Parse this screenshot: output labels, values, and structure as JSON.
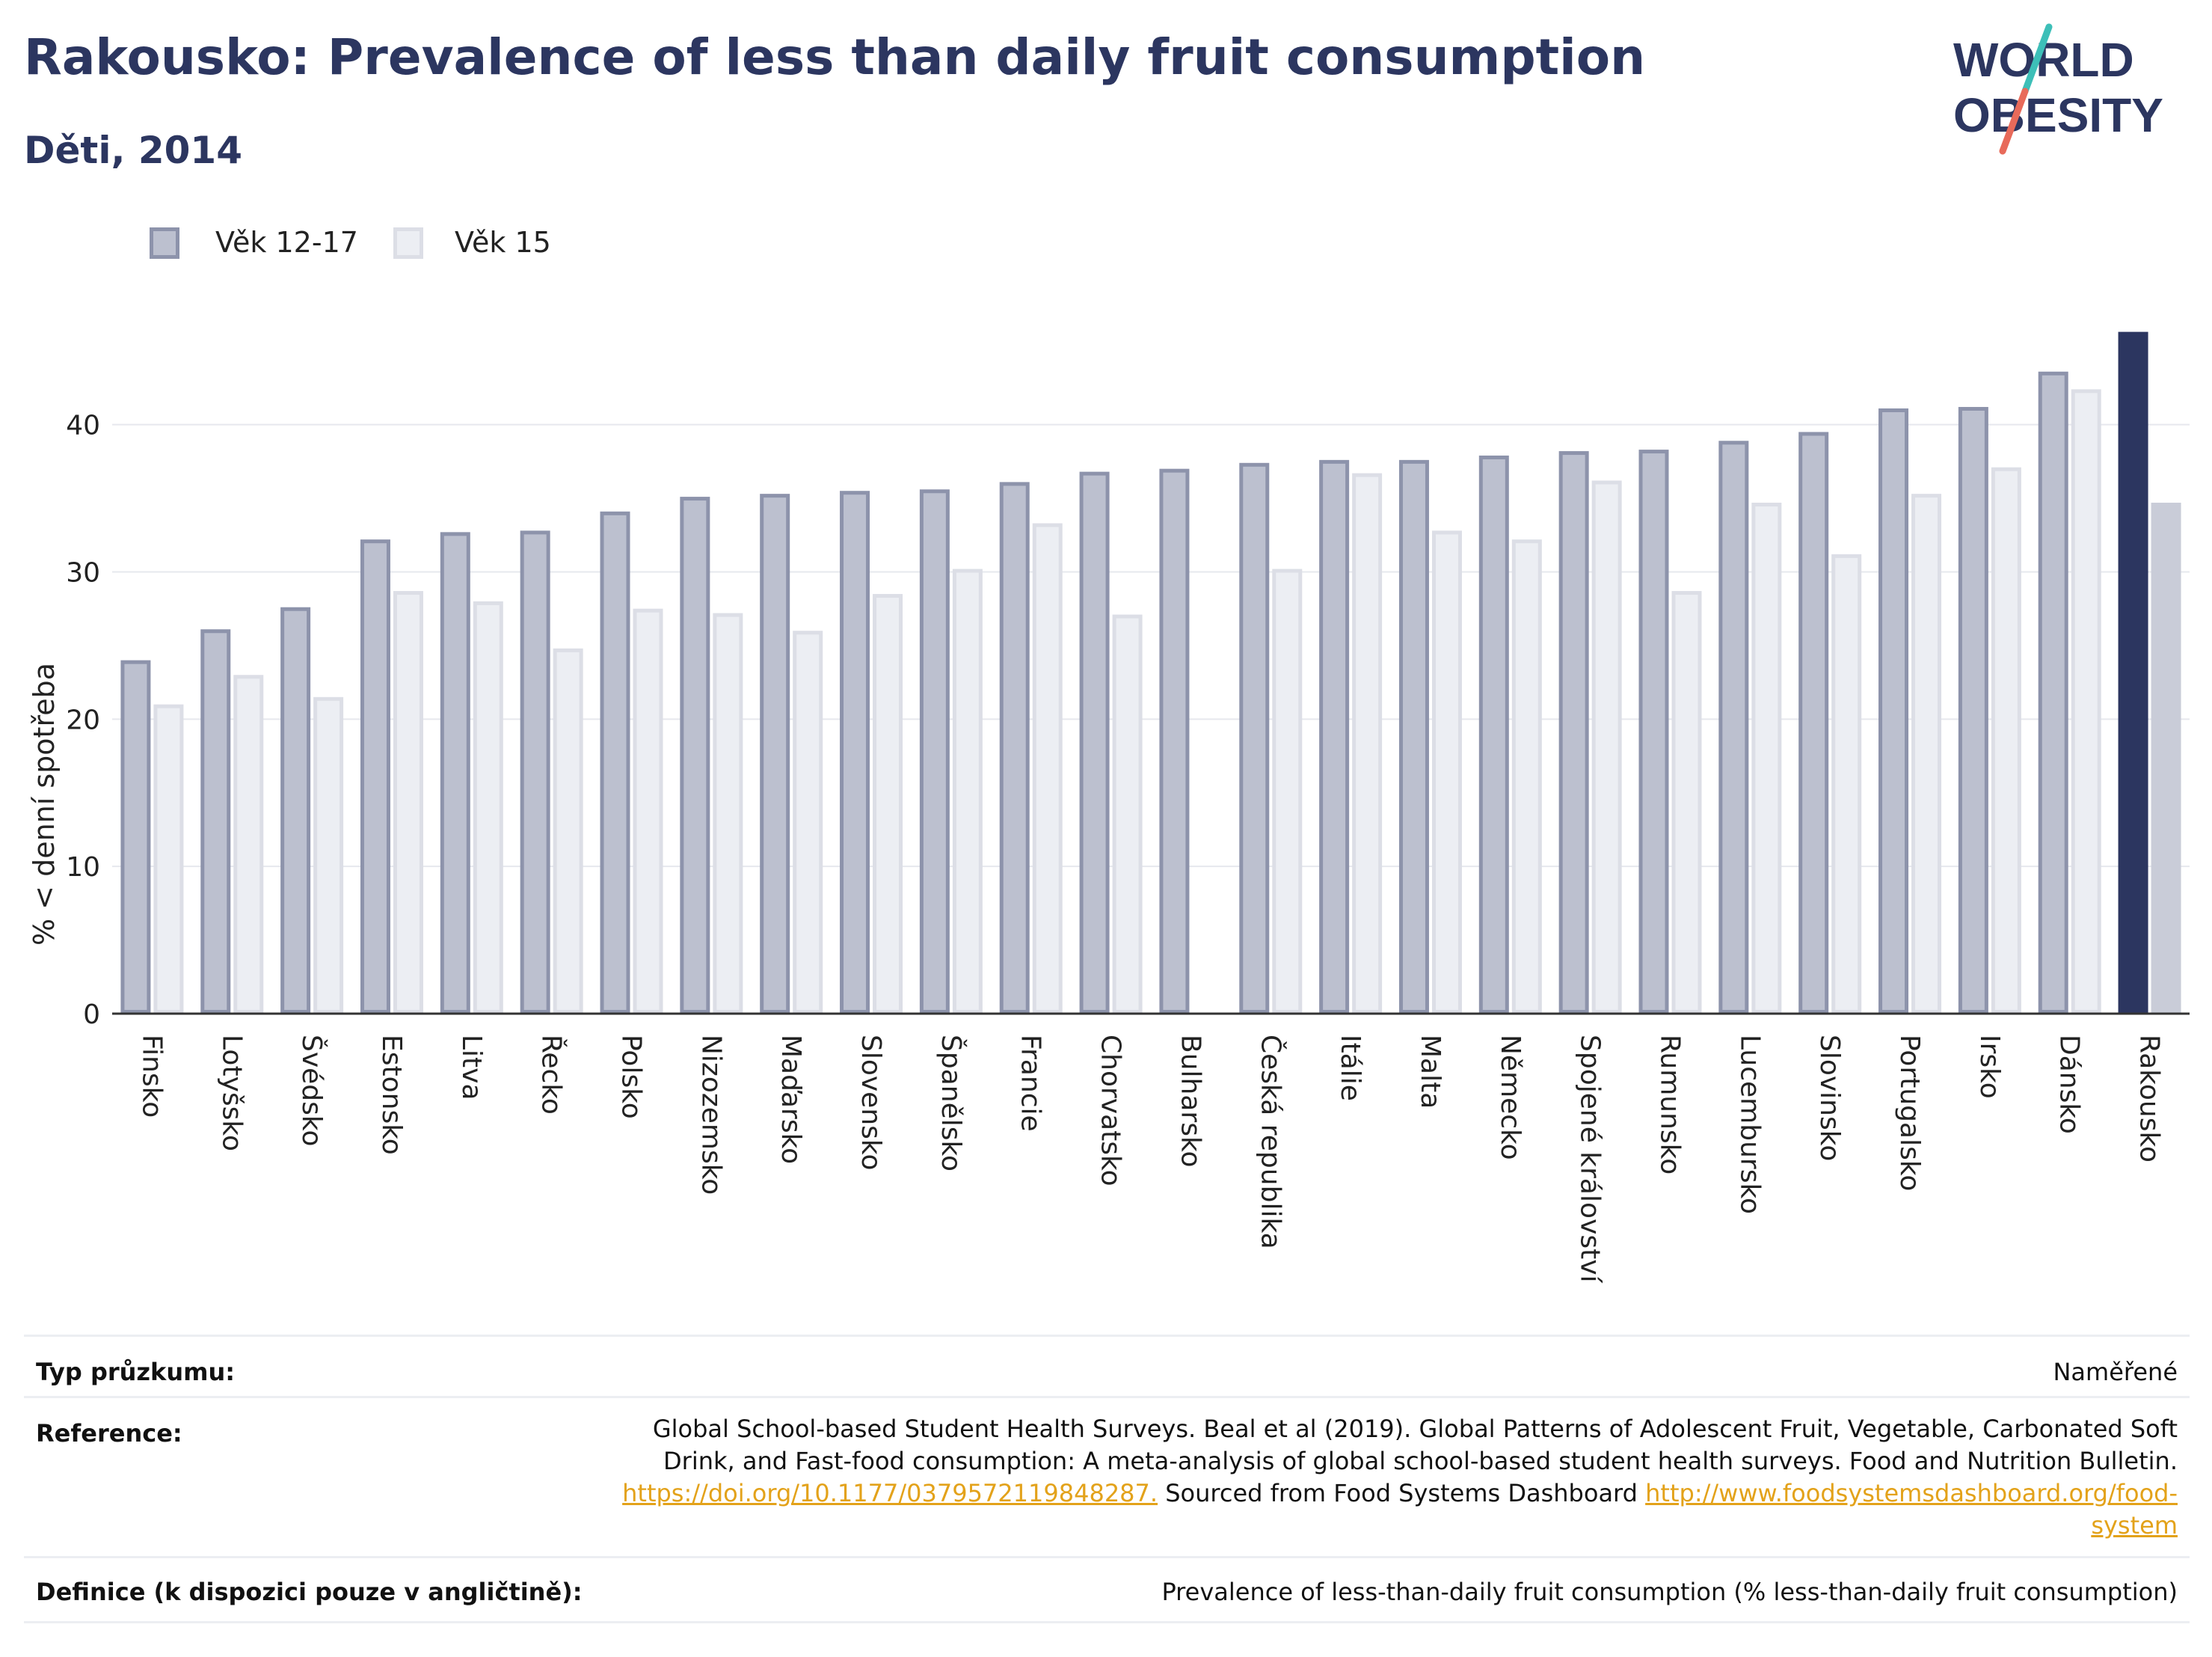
{
  "header": {
    "title": "Rakousko: Prevalence of less than daily fruit consumption",
    "subtitle": "Děti, 2014"
  },
  "logo": {
    "line1": "WORLD",
    "line2": "OBESITY"
  },
  "colors": {
    "series1": "#bcc0cf",
    "series1_border": "#8d93ab",
    "series2": "#eceef3",
    "series2_border": "#dcdee6",
    "highlight1": "#2c3660",
    "highlight2": "#c9ccd8",
    "title": "#2c3660",
    "link": "#e3a21a"
  },
  "chart_data": {
    "type": "bar",
    "ylabel": "% < denní spotřeba",
    "ylim": [
      0,
      47.5
    ],
    "yticks": [
      0,
      10,
      20,
      30,
      40
    ],
    "legend_position": "top-left",
    "grid": true,
    "highlight_category": "Rakousko",
    "categories": [
      "Finsko",
      "Lotyšsko",
      "Švédsko",
      "Estonsko",
      "Litva",
      "Řecko",
      "Polsko",
      "Nizozemsko",
      "Maďarsko",
      "Slovensko",
      "Španělsko",
      "Francie",
      "Chorvatsko",
      "Bulharsko",
      "Česká republika",
      "Itálie",
      "Malta",
      "Německo",
      "Spojené království",
      "Rumunsko",
      "Lucembursko",
      "Slovinsko",
      "Portugalsko",
      "Irsko",
      "Dánsko",
      "Rakousko"
    ],
    "series": [
      {
        "name": "Věk 12-17",
        "values": [
          24.0,
          26.1,
          27.6,
          32.2,
          32.7,
          32.8,
          34.1,
          35.1,
          35.3,
          35.5,
          35.6,
          36.1,
          36.8,
          37.0,
          37.4,
          37.6,
          37.6,
          37.9,
          38.2,
          38.3,
          38.9,
          39.5,
          41.1,
          41.2,
          43.6,
          46.3
        ]
      },
      {
        "name": "Věk 15",
        "values": [
          21.0,
          23.0,
          21.5,
          28.7,
          28.0,
          24.8,
          27.5,
          27.2,
          26.0,
          28.5,
          30.2,
          33.3,
          27.1,
          null,
          30.2,
          36.7,
          32.8,
          32.2,
          36.2,
          28.7,
          34.7,
          31.2,
          35.3,
          37.1,
          42.4,
          34.7
        ]
      }
    ]
  },
  "footer": {
    "survey_type_label": "Typ průzkumu:",
    "survey_type_value": "Naměřené",
    "reference_label": "Reference:",
    "reference_text_1": "Global School-based Student Health Surveys. Beal et al (2019). Global Patterns of Adolescent Fruit, Vegetable, Carbonated Soft Drink, and Fast-food consumption: A meta-analysis of global school-based student health surveys. Food and Nutrition Bulletin.",
    "reference_link_1": "https://doi.org/10.1177/0379572119848287.",
    "reference_text_2": "Sourced from Food Systems Dashboard",
    "reference_link_2": "http://www.foodsystemsdashboard.org/food-system",
    "definition_label": "Definice (k dispozici pouze v angličtině):",
    "definition_value": "Prevalence of less-than-daily fruit consumption (% less-than-daily fruit consumption)"
  }
}
